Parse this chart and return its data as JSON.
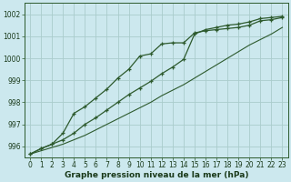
{
  "xlabel": "Graphe pression niveau de la mer (hPa)",
  "ylabel": "",
  "bg_color": "#cce8ee",
  "grid_color": "#aacccc",
  "line_color": "#2d5a2d",
  "ylim": [
    995.5,
    1002.5
  ],
  "xlim": [
    -0.5,
    23.5
  ],
  "yticks": [
    996,
    997,
    998,
    999,
    1000,
    1001,
    1002
  ],
  "xticks": [
    0,
    1,
    2,
    3,
    4,
    5,
    6,
    7,
    8,
    9,
    10,
    11,
    12,
    13,
    14,
    15,
    16,
    17,
    18,
    19,
    20,
    21,
    22,
    23
  ],
  "series1": [
    995.65,
    995.9,
    996.1,
    996.6,
    997.5,
    997.8,
    998.2,
    998.6,
    999.1,
    999.5,
    1000.1,
    1000.2,
    1000.65,
    1000.7,
    1000.7,
    1001.15,
    1001.25,
    1001.3,
    1001.35,
    1001.4,
    1001.5,
    1001.7,
    1001.75,
    1001.85
  ],
  "series2": [
    995.65,
    995.9,
    996.1,
    996.3,
    996.6,
    997.0,
    997.3,
    997.65,
    998.0,
    998.35,
    998.65,
    998.95,
    999.3,
    999.6,
    999.95,
    1001.1,
    1001.3,
    1001.4,
    1001.5,
    1001.55,
    1001.65,
    1001.8,
    1001.85,
    1001.9
  ],
  "series3": [
    995.65,
    995.8,
    995.95,
    996.1,
    996.3,
    996.5,
    996.75,
    997.0,
    997.25,
    997.5,
    997.75,
    998.0,
    998.3,
    998.55,
    998.8,
    999.1,
    999.4,
    999.7,
    1000.0,
    1000.3,
    1000.6,
    1000.85,
    1001.1,
    1001.4
  ],
  "xlabel_fontsize": 6.5,
  "tick_fontsize": 5.5
}
